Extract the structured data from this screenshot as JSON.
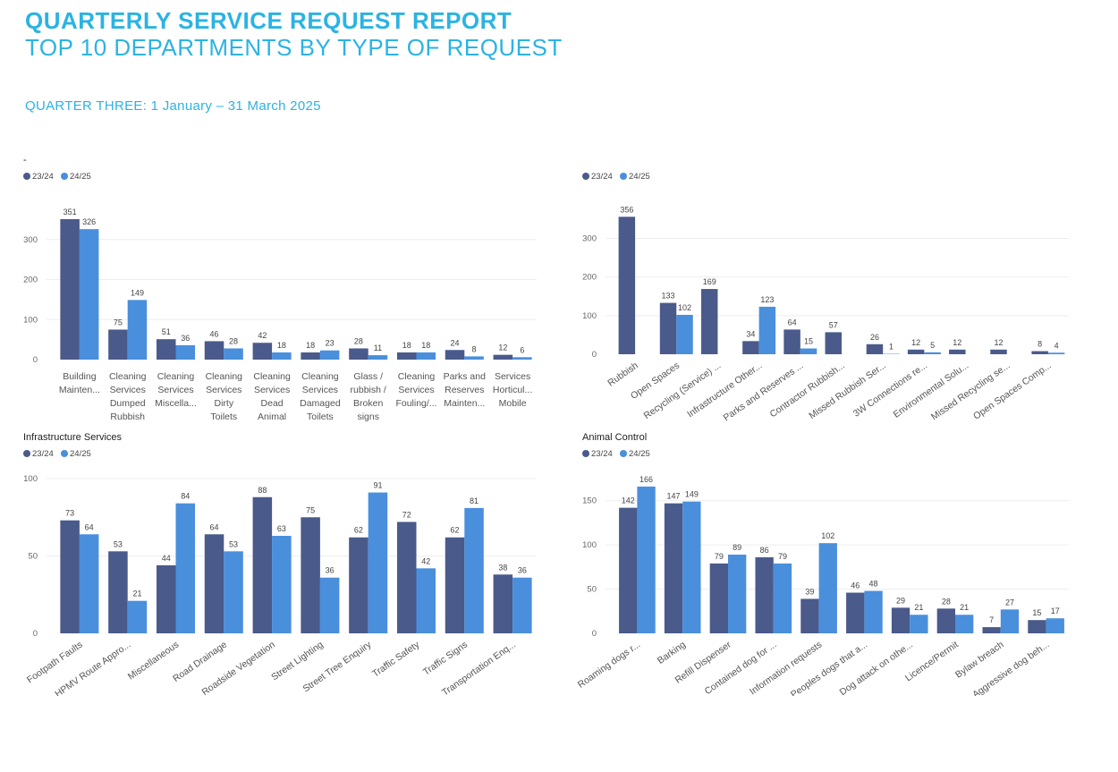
{
  "header": {
    "title": "QUARTERLY SERVICE REQUEST REPORT",
    "subtitle": "TOP 10 DEPARTMENTS BY TYPE OF REQUEST",
    "period": "QUARTER THREE: 1 January – 31 March 2025"
  },
  "colors": {
    "series_23_24": "#4a5a8a",
    "series_24_25": "#4a8fdc",
    "grid": "#eeeeee"
  },
  "chart_data": [
    {
      "type": "bar",
      "title": "-",
      "legend": [
        "23/24",
        "24/25"
      ],
      "categories": [
        "Building Mainten...",
        "Cleaning Services Dumped Rubbish",
        "Cleaning Services Miscella...",
        "Cleaning Services Dirty Toilets",
        "Cleaning Services Dead Animal",
        "Cleaning Services Damaged Toilets",
        "Glass / rubbish / Broken signs et...",
        "Cleaning Services Fouling/...",
        "Parks and Reserves Mainten...",
        "Services Horticul... Mobile"
      ],
      "series": [
        {
          "name": "23/24",
          "values": [
            351,
            75,
            51,
            46,
            42,
            18,
            28,
            18,
            24,
            12
          ]
        },
        {
          "name": "24/25",
          "values": [
            326,
            149,
            36,
            28,
            18,
            23,
            11,
            18,
            8,
            6
          ]
        }
      ],
      "yticks": [
        0,
        100,
        200,
        300
      ],
      "ylim": [
        0,
        380
      ],
      "grid": true,
      "legend_position": "top-left"
    },
    {
      "type": "bar",
      "title": "",
      "legend": [
        "23/24",
        "24/25"
      ],
      "categories": [
        "Rubbish",
        "Open Spaces",
        "Recycling (Service) ...",
        "Infrastructure Other...",
        "Parks and Reserves ...",
        "Contractor Rubbish...",
        "Missed Rubbish Ser...",
        "3W Connections re...",
        "Environmental Solu...",
        "Missed Recycling se...",
        "Open Spaces Comp..."
      ],
      "series": [
        {
          "name": "23/24",
          "values": [
            356,
            133,
            169,
            34,
            64,
            57,
            26,
            12,
            12,
            12,
            8
          ]
        },
        {
          "name": "24/25",
          "values": [
            null,
            102,
            null,
            123,
            15,
            null,
            1,
            5,
            null,
            null,
            4
          ]
        }
      ],
      "yticks": [
        0,
        100,
        200,
        300
      ],
      "ylim": [
        0,
        380
      ],
      "grid": true,
      "legend_position": "top-left"
    },
    {
      "type": "bar",
      "title": "Infrastructure Services",
      "legend": [
        "23/24",
        "24/25"
      ],
      "categories": [
        "Footpath Faults",
        "HPMV Route Appro...",
        "Miscellaneous",
        "Road Drainage",
        "Roadside Vegetation",
        "Street Lighting",
        "Street Tree Enquiry",
        "Traffic Safety",
        "Traffic Signs",
        "Transportation Enq..."
      ],
      "series": [
        {
          "name": "23/24",
          "values": [
            73,
            53,
            44,
            64,
            88,
            75,
            62,
            72,
            62,
            38
          ]
        },
        {
          "name": "24/25",
          "values": [
            64,
            21,
            84,
            53,
            63,
            36,
            91,
            42,
            81,
            36
          ]
        }
      ],
      "yticks": [
        0,
        50,
        100
      ],
      "ylim": [
        0,
        100
      ],
      "grid": true,
      "legend_position": "top-left"
    },
    {
      "type": "bar",
      "title": "Animal Control",
      "legend": [
        "23/24",
        "24/25"
      ],
      "categories": [
        "Roaming dogs r...",
        "Barking",
        "Refill Dispenser",
        "Contained dog for ...",
        "Information requests",
        "Peoples dogs that a...",
        "Dog attack on othe...",
        "Licence/Permit",
        "Bylaw breach",
        "Aggressive dog beh..."
      ],
      "series": [
        {
          "name": "23/24",
          "values": [
            142,
            147,
            79,
            86,
            39,
            46,
            29,
            28,
            7,
            15
          ]
        },
        {
          "name": "24/25",
          "values": [
            166,
            149,
            89,
            79,
            102,
            48,
            21,
            21,
            27,
            17
          ]
        }
      ],
      "yticks": [
        0,
        50,
        100,
        150
      ],
      "ylim": [
        0,
        175
      ],
      "grid": true,
      "legend_position": "top-left"
    }
  ]
}
